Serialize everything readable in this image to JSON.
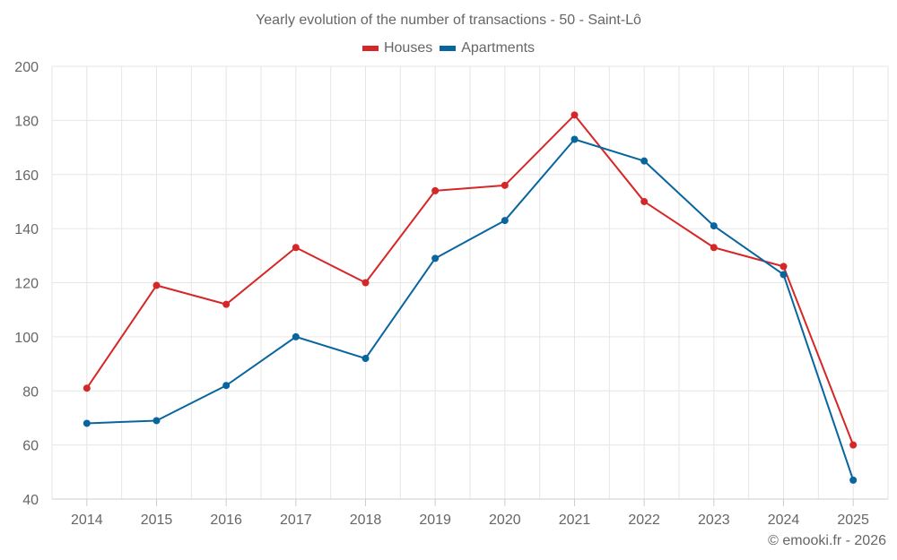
{
  "chart_data": {
    "type": "line",
    "title": "Yearly evolution of the number of transactions - 50 - Saint-Lô",
    "xlabel": "",
    "ylabel": "",
    "categories": [
      "2014",
      "2015",
      "2016",
      "2017",
      "2018",
      "2019",
      "2020",
      "2021",
      "2022",
      "2023",
      "2024",
      "2025"
    ],
    "series": [
      {
        "name": "Houses",
        "color": "#d62728",
        "values": [
          81,
          119,
          112,
          133,
          120,
          154,
          156,
          182,
          150,
          133,
          126,
          60
        ]
      },
      {
        "name": "Apartments",
        "color": "#08659e",
        "values": [
          68,
          69,
          82,
          100,
          92,
          129,
          143,
          173,
          165,
          141,
          123,
          47
        ]
      }
    ],
    "ylim": [
      40,
      200
    ],
    "yticks": [
      40,
      60,
      80,
      100,
      120,
      140,
      160,
      180,
      200
    ],
    "grid": true,
    "legend_position": "top-center"
  },
  "credit": "© emooki.fr - 2026"
}
